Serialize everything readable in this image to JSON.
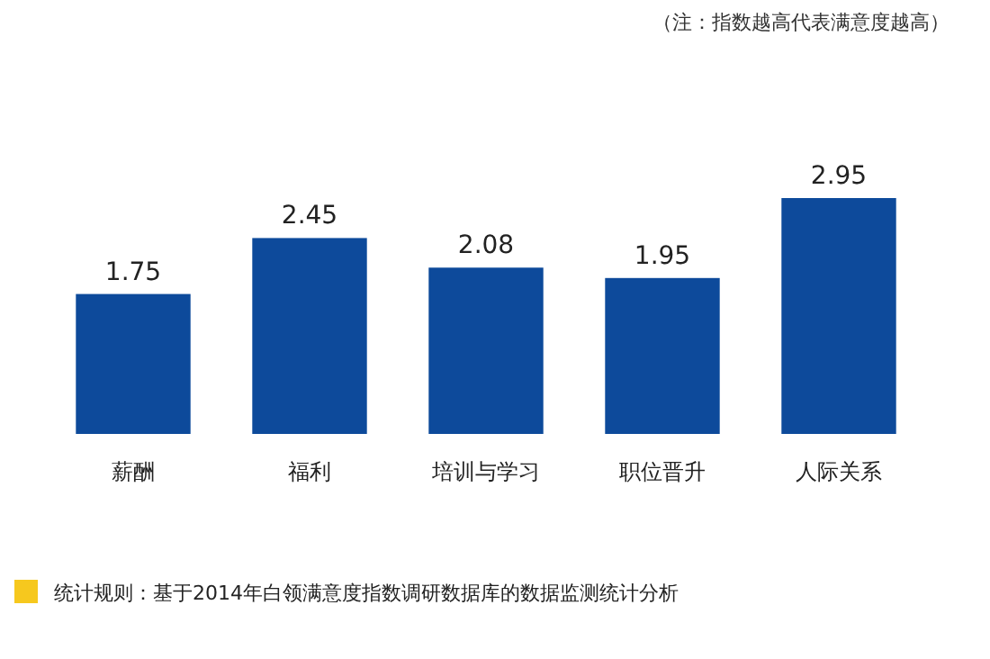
{
  "chart_data": {
    "type": "bar",
    "categories": [
      "薪酬",
      "福利",
      "培训与学习",
      "职位晋升",
      "人际关系"
    ],
    "values": [
      1.75,
      2.45,
      2.08,
      1.95,
      2.95
    ],
    "color": "#0d4a9b",
    "data_labels": true,
    "annotations": [
      "（注：指数越高代表满意度越高）",
      "统计规则：基于2014年白领满意度指数调研数据库的数据监测统计分析"
    ]
  }
}
